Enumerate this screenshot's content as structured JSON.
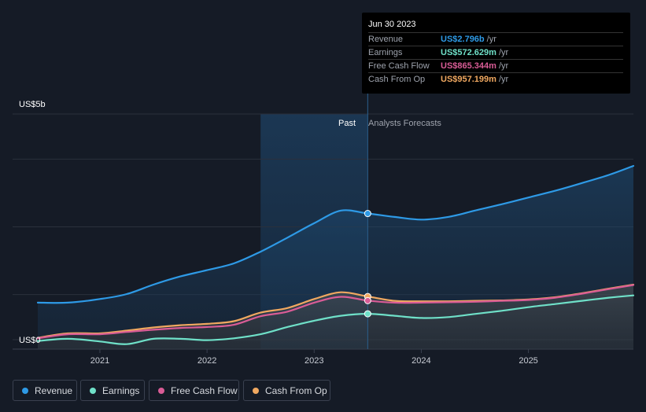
{
  "tooltip": {
    "date": "Jun 30 2023",
    "rows": [
      {
        "label": "Revenue",
        "value": "US$2.796b",
        "unit": "/yr",
        "color": "#2e9ae6"
      },
      {
        "label": "Earnings",
        "value": "US$572.629m",
        "unit": "/yr",
        "color": "#6fe0c8"
      },
      {
        "label": "Free Cash Flow",
        "value": "US$865.344m",
        "unit": "/yr",
        "color": "#d95c96"
      },
      {
        "label": "Cash From Op",
        "value": "US$957.199m",
        "unit": "/yr",
        "color": "#f0a860"
      }
    ]
  },
  "legend": [
    {
      "label": "Revenue",
      "color": "#2e9ae6"
    },
    {
      "label": "Earnings",
      "color": "#6fe0c8"
    },
    {
      "label": "Free Cash Flow",
      "color": "#d95c96"
    },
    {
      "label": "Cash From Op",
      "color": "#f0a860"
    }
  ],
  "chart_data": {
    "type": "line",
    "y_top_label": "US$5b",
    "y_bottom_label": "US$0",
    "ylim": [
      0,
      5
    ],
    "xlim": [
      2020.42,
      2025.98
    ],
    "x_ticks": [
      2021,
      2022,
      2023,
      2024,
      2025
    ],
    "x_tick_labels": [
      "2021",
      "2022",
      "2023",
      "2024",
      "2025"
    ],
    "past_label": "Past",
    "forecast_label": "Analysts Forecasts",
    "past_shade_start": 2022.5,
    "divider_x": 2023.5,
    "grid": true,
    "series": [
      {
        "name": "Revenue",
        "color": "#2e9ae6",
        "area": true,
        "x": [
          2020.42,
          2020.7,
          2021.0,
          2021.25,
          2021.5,
          2021.75,
          2022.0,
          2022.25,
          2022.5,
          2022.75,
          2023.0,
          2023.25,
          2023.5,
          2023.75,
          2024.0,
          2024.25,
          2024.5,
          2024.75,
          2025.0,
          2025.25,
          2025.5,
          2025.75,
          2025.98
        ],
        "y": [
          0.82,
          0.82,
          0.9,
          1.01,
          1.22,
          1.4,
          1.54,
          1.69,
          1.95,
          2.26,
          2.58,
          2.86,
          2.796,
          2.72,
          2.66,
          2.72,
          2.86,
          3.0,
          3.15,
          3.3,
          3.47,
          3.65,
          3.85
        ]
      },
      {
        "name": "Cash From Op",
        "color": "#f0a860",
        "x": [
          2020.42,
          2020.7,
          2021.0,
          2021.25,
          2021.5,
          2021.75,
          2022.0,
          2022.25,
          2022.5,
          2022.75,
          2023.0,
          2023.25,
          2023.5,
          2023.75,
          2024.0,
          2024.25,
          2024.5,
          2024.75,
          2025.0,
          2025.25,
          2025.5,
          2025.75,
          2025.98
        ],
        "y": [
          0.04,
          0.14,
          0.14,
          0.2,
          0.27,
          0.32,
          0.35,
          0.41,
          0.6,
          0.7,
          0.9,
          1.05,
          0.957,
          0.86,
          0.85,
          0.85,
          0.86,
          0.87,
          0.89,
          0.94,
          1.03,
          1.13,
          1.22
        ]
      },
      {
        "name": "Free Cash Flow",
        "color": "#d95c96",
        "x": [
          2020.42,
          2020.7,
          2021.0,
          2021.25,
          2021.5,
          2021.75,
          2022.0,
          2022.25,
          2022.5,
          2022.75,
          2023.0,
          2023.25,
          2023.5,
          2023.75,
          2024.0,
          2024.25,
          2024.5,
          2024.75,
          2025.0,
          2025.25,
          2025.5,
          2025.75,
          2025.98
        ],
        "y": [
          0.03,
          0.12,
          0.12,
          0.17,
          0.22,
          0.26,
          0.28,
          0.33,
          0.52,
          0.62,
          0.82,
          0.95,
          0.865,
          0.82,
          0.82,
          0.83,
          0.84,
          0.86,
          0.88,
          0.93,
          1.02,
          1.12,
          1.21
        ]
      },
      {
        "name": "Earnings",
        "color": "#6fe0c8",
        "x": [
          2020.42,
          2020.7,
          2021.0,
          2021.25,
          2021.5,
          2021.75,
          2022.0,
          2022.25,
          2022.5,
          2022.75,
          2023.0,
          2023.25,
          2023.5,
          2023.75,
          2024.0,
          2024.25,
          2024.5,
          2024.75,
          2025.0,
          2025.25,
          2025.5,
          2025.75,
          2025.98
        ],
        "y": [
          -0.03,
          0.02,
          -0.04,
          -0.1,
          0.02,
          0.02,
          -0.01,
          0.03,
          0.12,
          0.28,
          0.42,
          0.53,
          0.573,
          0.53,
          0.48,
          0.5,
          0.57,
          0.64,
          0.72,
          0.79,
          0.86,
          0.93,
          0.98
        ]
      }
    ]
  }
}
